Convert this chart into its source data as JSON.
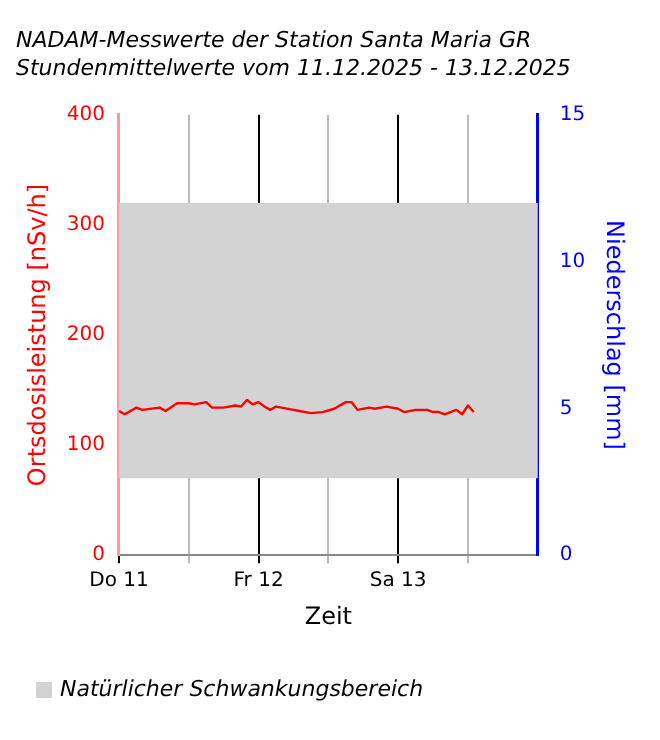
{
  "chart_data": {
    "type": "line",
    "title": "NADAM-Messwerte der Station Santa Maria GR",
    "subtitle": "Stundenmittelwerte vom 11.12.2025 - 13.12.2025",
    "xlabel": "Zeit",
    "ylabel": "Ortsdosisleistung [nSv/h]",
    "y2label": "Niederschlag [mm]",
    "x": [
      "2025-12-11T00:00",
      "2025-12-11T01:00",
      "2025-12-11T03:00",
      "2025-12-11T04:00",
      "2025-12-11T07:00",
      "2025-12-11T08:00",
      "2025-12-11T10:00",
      "2025-12-11T12:00",
      "2025-12-11T13:00",
      "2025-12-11T15:00",
      "2025-12-11T16:00",
      "2025-12-11T18:00",
      "2025-12-11T20:00",
      "2025-12-11T21:00",
      "2025-12-11T22:00",
      "2025-12-11T23:00",
      "2025-12-12T00:00",
      "2025-12-12T01:00",
      "2025-12-12T02:00",
      "2025-12-12T03:00",
      "2025-12-12T06:00",
      "2025-12-12T07:00",
      "2025-12-12T09:00",
      "2025-12-12T11:00",
      "2025-12-12T13:00",
      "2025-12-12T15:00",
      "2025-12-12T16:00",
      "2025-12-12T17:00",
      "2025-12-12T19:00",
      "2025-12-12T20:00",
      "2025-12-12T22:00",
      "2025-12-13T00:00",
      "2025-12-13T01:00",
      "2025-12-13T03:00",
      "2025-12-13T05:00",
      "2025-12-13T06:00",
      "2025-12-13T07:00",
      "2025-12-13T08:00",
      "2025-12-13T10:00",
      "2025-12-13T11:00",
      "2025-12-13T12:00",
      "2025-12-13T13:00"
    ],
    "series": [
      {
        "color": "#ff0000",
        "values": [
          131,
          128,
          134,
          132,
          134,
          131,
          138,
          138,
          137,
          139,
          134,
          134,
          136,
          135,
          141,
          137,
          139,
          135,
          132,
          135,
          132,
          131,
          129,
          130,
          133,
          139,
          139,
          132,
          134,
          133,
          135,
          133,
          130,
          132,
          132,
          130,
          130,
          128,
          132,
          128,
          136,
          130
        ]
      }
    ],
    "xlim": [
      "2025-12-11T00:00",
      "2025-12-14T00:00"
    ],
    "xticks": [
      {
        "value": "2025-12-11T00:00",
        "label": "Do 11"
      },
      {
        "value": "2025-12-11T12:00",
        "label": null
      },
      {
        "value": "2025-12-12T00:00",
        "label": "Fr 12"
      },
      {
        "value": "2025-12-12T12:00",
        "label": null
      },
      {
        "value": "2025-12-13T00:00",
        "label": "Sa 13"
      },
      {
        "value": "2025-12-13T12:00",
        "label": null
      }
    ],
    "ylim": [
      0,
      400
    ],
    "yticks": [
      0,
      100,
      200,
      300,
      400
    ],
    "y2lim": [
      0,
      15
    ],
    "y2ticks": [
      0,
      5,
      10,
      15
    ],
    "bands": [
      {
        "axis": "y",
        "from": 70,
        "to": 320,
        "label": "Natürlicher Schwankungsbereich",
        "color": "#d3d3d3"
      }
    ],
    "grid": "x",
    "legend": "bottom"
  }
}
